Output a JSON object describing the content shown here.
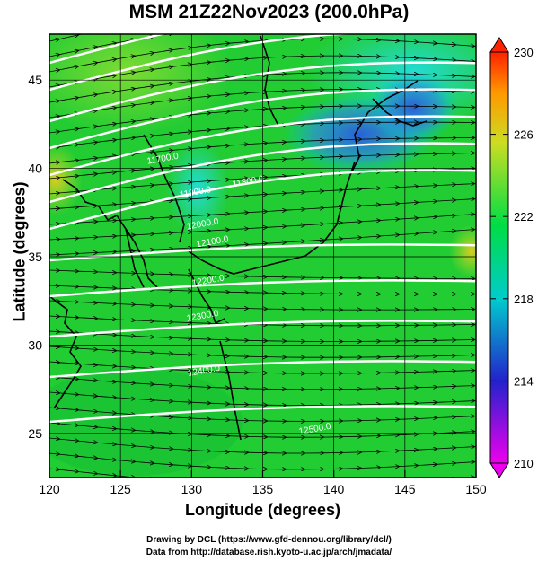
{
  "title": "MSM 21Z22Nov2023 (200.0hPa)",
  "xlabel": "Longitude (degrees)",
  "ylabel": "Latitude  (degrees)",
  "credits": {
    "line1": "Drawing by DCL (https://www.gfd-dennou.org/library/dcl/)",
    "line2": "Data from http://database.rish.kyoto-u.ac.jp/arch/jmadata/"
  },
  "chart_data": {
    "type": "heatmap",
    "xlim": [
      120,
      150
    ],
    "ylim": [
      22.5,
      47.6
    ],
    "xticks": [
      120,
      125,
      130,
      135,
      140,
      145,
      150
    ],
    "yticks": [
      25,
      30,
      35,
      40,
      45
    ],
    "colorbar": {
      "range": [
        210,
        230
      ],
      "ticks": [
        210,
        214,
        218,
        222,
        226,
        230
      ],
      "stops": [
        "#ee00ee",
        "#2222cc",
        "#00cccc",
        "#00dd44",
        "#ccdd22",
        "#ff9900",
        "#ff2200"
      ],
      "extend": "both"
    },
    "contour_labels": [
      {
        "text": "11700.0",
        "lon": 128.0,
        "lat": 40.4
      },
      {
        "text": "11800.0",
        "lon": 134.0,
        "lat": 39.1
      },
      {
        "text": "11900.0",
        "lon": 130.3,
        "lat": 38.5
      },
      {
        "text": "12000.0",
        "lon": 130.8,
        "lat": 36.7
      },
      {
        "text": "12100.0",
        "lon": 131.5,
        "lat": 35.7
      },
      {
        "text": "12200.0",
        "lon": 131.2,
        "lat": 33.5
      },
      {
        "text": "12300.0",
        "lon": 130.8,
        "lat": 31.5
      },
      {
        "text": "12400.0",
        "lon": 130.9,
        "lat": 28.4
      },
      {
        "text": "12500.0",
        "lon": 138.7,
        "lat": 25.1
      }
    ]
  }
}
